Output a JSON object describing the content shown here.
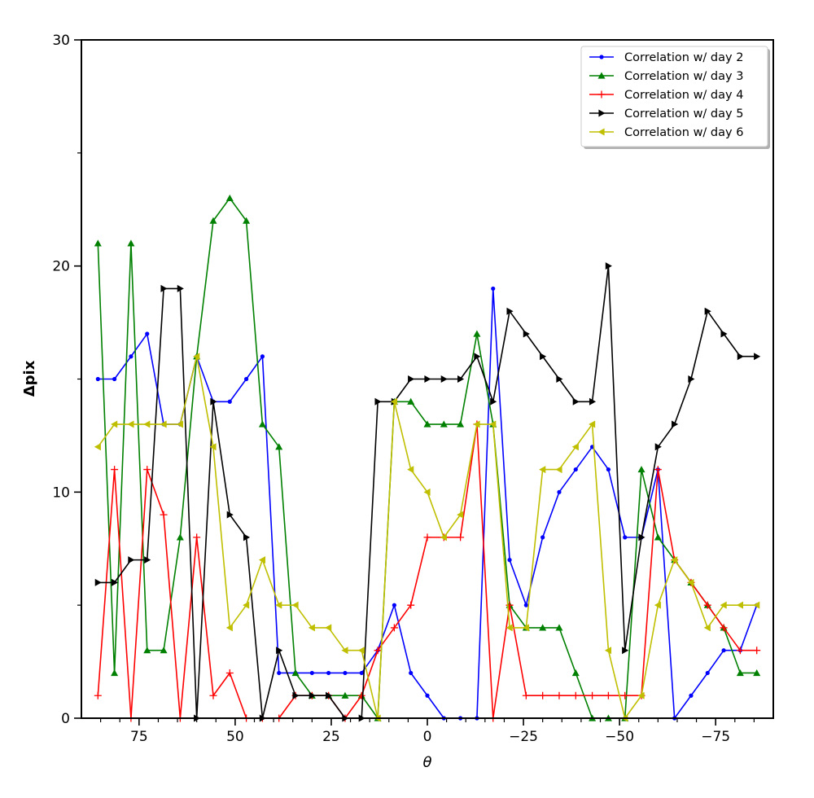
{
  "chart_data": {
    "type": "line",
    "title": "",
    "xlabel": "θ",
    "ylabel": "Δpix",
    "xlim": [
      90,
      -90
    ],
    "ylim": [
      0,
      30
    ],
    "x_ticks": [
      75,
      50,
      25,
      0,
      -25,
      -50,
      -75
    ],
    "x_tick_labels": [
      "75",
      "50",
      "25",
      "0",
      "−25",
      "−50",
      "−75"
    ],
    "y_ticks": [
      0,
      10,
      20,
      30
    ],
    "y_tick_labels": [
      "0",
      "10",
      "20",
      "30"
    ],
    "grid": false,
    "legend_position": "top-right",
    "x": [
      85.7,
      81.4,
      77.1,
      72.9,
      68.6,
      64.3,
      60.0,
      55.7,
      51.4,
      47.1,
      42.9,
      38.6,
      34.3,
      30.0,
      25.7,
      21.4,
      17.1,
      12.9,
      8.6,
      4.3,
      0.0,
      -4.3,
      -8.6,
      -12.9,
      -17.1,
      -21.4,
      -25.7,
      -30.0,
      -34.3,
      -38.6,
      -42.9,
      -47.1,
      -51.4,
      -55.7,
      -60.0,
      -64.3,
      -68.6,
      -72.9,
      -77.1,
      -81.4,
      -85.7
    ],
    "series": [
      {
        "name": "Correlation w/ day 2",
        "color": "#0000ff",
        "marker": "dot",
        "values": [
          15,
          15,
          16,
          17,
          13,
          13,
          16,
          14,
          14,
          15,
          16,
          2,
          2,
          2,
          2,
          2,
          2,
          3,
          5,
          2,
          1,
          0,
          0,
          0,
          19,
          7,
          5,
          8,
          10,
          11,
          12,
          11,
          8,
          8,
          11,
          0,
          1,
          2,
          3,
          3,
          5
        ]
      },
      {
        "name": "Correlation w/ day 3",
        "color": "#008000",
        "marker": "triangle-up",
        "values": [
          21,
          2,
          21,
          3,
          3,
          8,
          16,
          22,
          23,
          22,
          13,
          12,
          2,
          1,
          1,
          1,
          1,
          0,
          14,
          14,
          13,
          13,
          13,
          17,
          13,
          5,
          4,
          4,
          4,
          2,
          0,
          0,
          0,
          11,
          8,
          7,
          6,
          5,
          4,
          2,
          2
        ]
      },
      {
        "name": "Correlation w/ day 4",
        "color": "#ff0000",
        "marker": "plus",
        "values": [
          1,
          11,
          0,
          11,
          9,
          0,
          8,
          1,
          2,
          0,
          0,
          0,
          1,
          1,
          1,
          0,
          1,
          3,
          4,
          5,
          8,
          8,
          8,
          13,
          0,
          5,
          1,
          1,
          1,
          1,
          1,
          1,
          1,
          1,
          11,
          7,
          6,
          5,
          4,
          3,
          3
        ]
      },
      {
        "name": "Correlation w/ day 5",
        "color": "#000000",
        "marker": "triangle-right",
        "values": [
          6,
          6,
          7,
          7,
          19,
          19,
          0,
          14,
          9,
          8,
          0,
          3,
          1,
          1,
          1,
          0,
          0,
          14,
          14,
          15,
          15,
          15,
          15,
          16,
          14,
          18,
          17,
          16,
          15,
          14,
          14,
          20,
          3,
          8,
          12,
          13,
          15,
          18,
          17,
          16,
          16
        ]
      },
      {
        "name": "Correlation w/ day 6",
        "color": "#bfbf00",
        "marker": "triangle-left",
        "values": [
          12,
          13,
          13,
          13,
          13,
          13,
          16,
          12,
          4,
          5,
          7,
          5,
          5,
          4,
          4,
          3,
          3,
          0,
          14,
          11,
          10,
          8,
          9,
          13,
          13,
          4,
          4,
          11,
          11,
          12,
          13,
          3,
          0,
          1,
          5,
          7,
          6,
          4,
          5,
          5,
          5
        ]
      }
    ]
  }
}
